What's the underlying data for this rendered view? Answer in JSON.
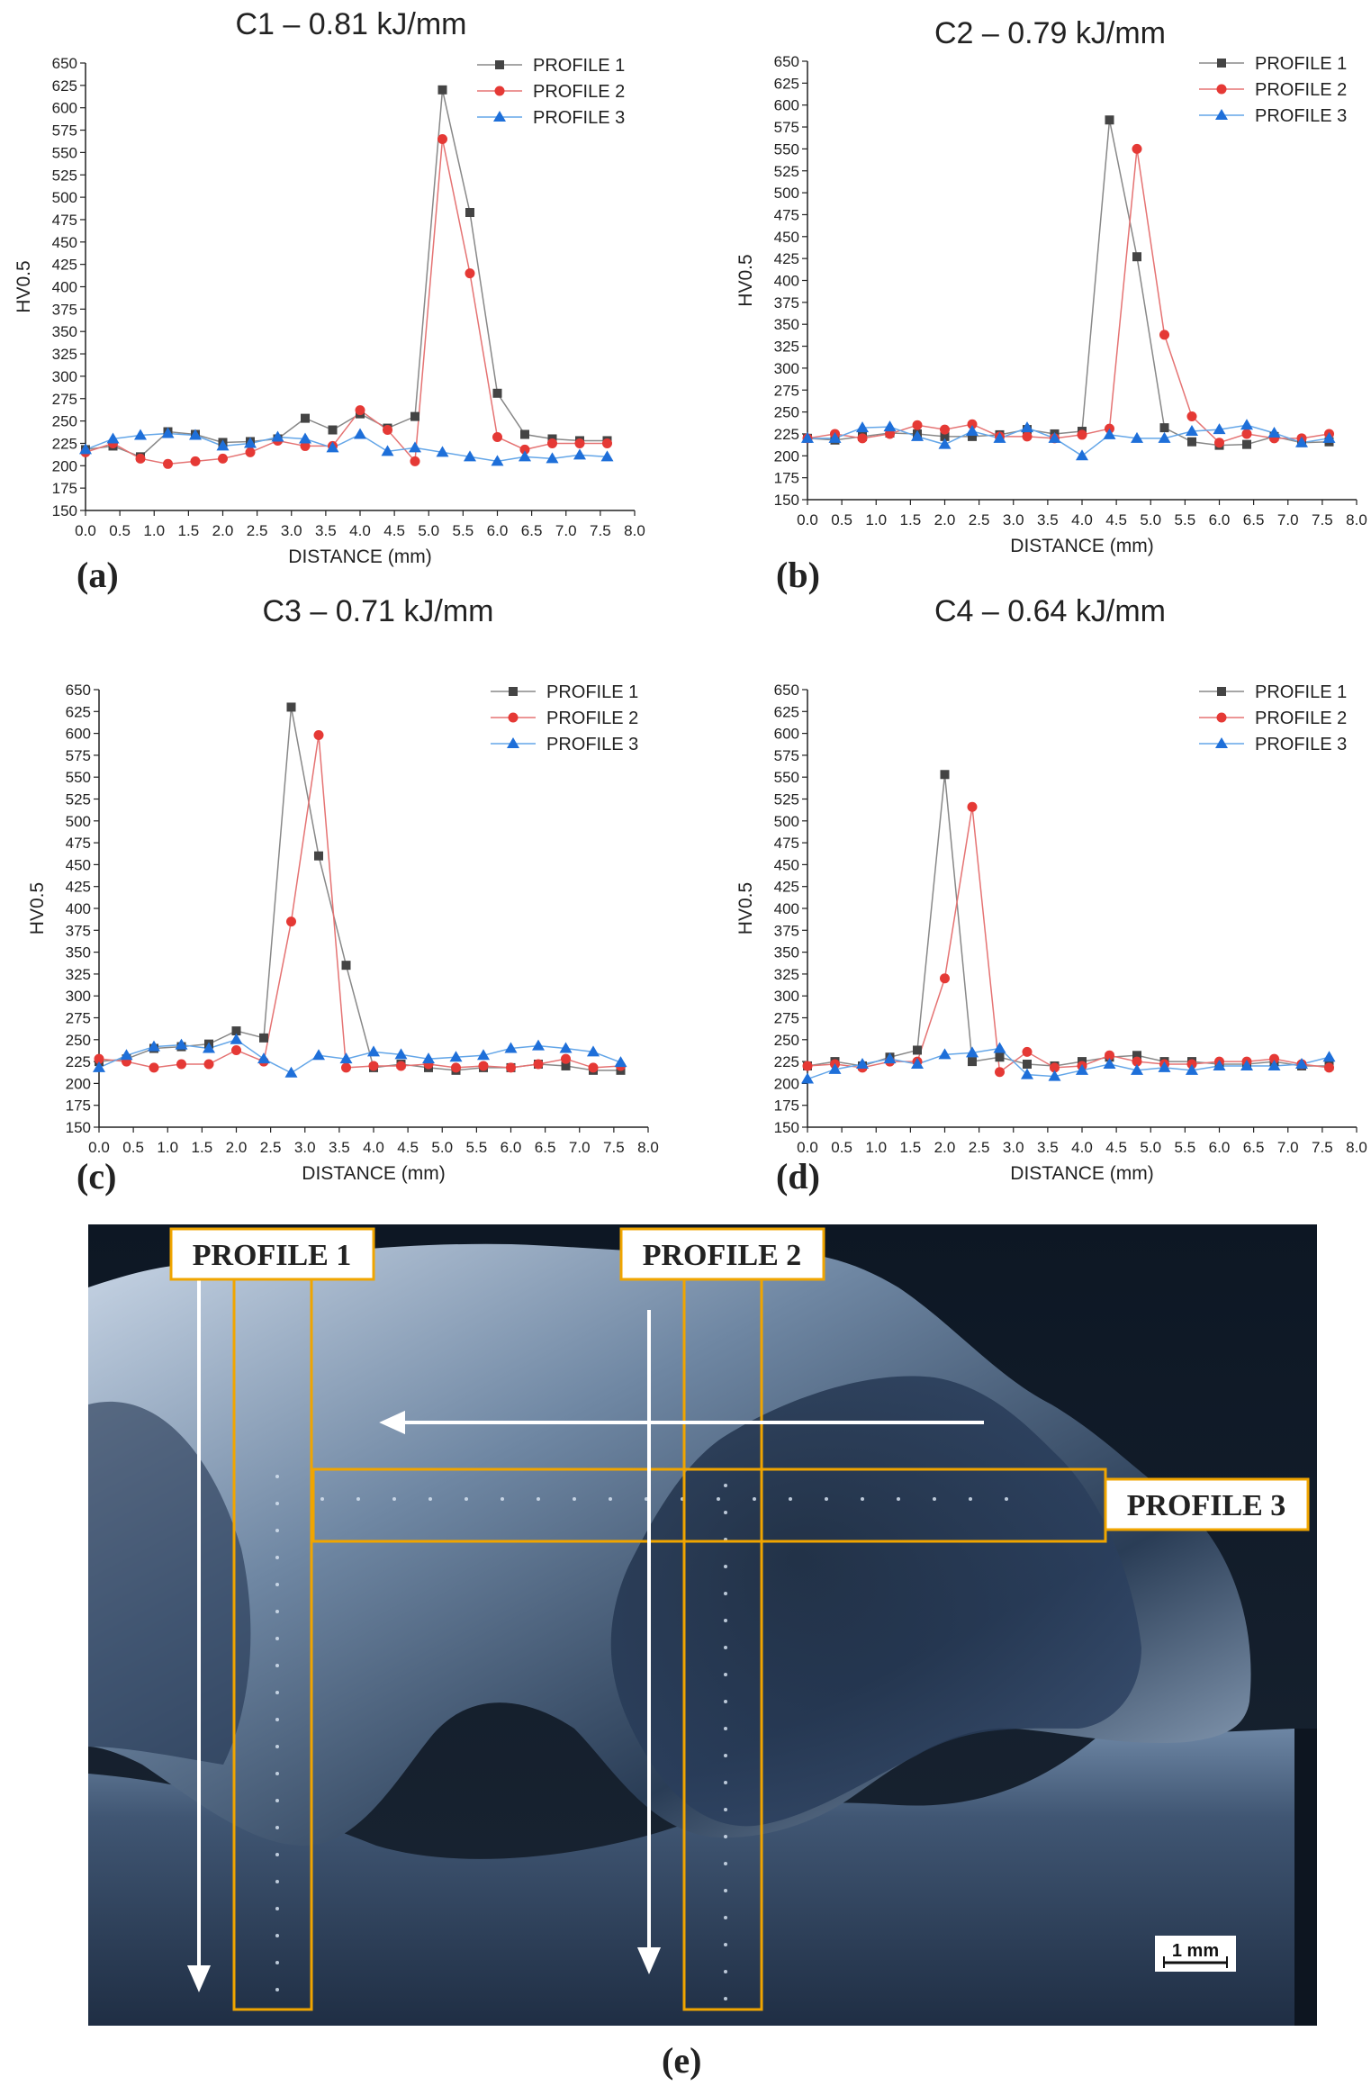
{
  "colors": {
    "series1": "#444444",
    "series2": "#e53935",
    "series3": "#1e6fd9",
    "line1": "#888888",
    "line2": "#e57373",
    "line3": "#64a6e8",
    "highlight": "#f0a500"
  },
  "chart_data": [
    {
      "id": "a",
      "panel_label": "(a)",
      "type": "line",
      "title": "C1 – 0.81 kJ/mm",
      "xlabel": "DISTANCE (mm)",
      "ylabel": "HV0.5",
      "xlim": [
        0,
        8
      ],
      "ylim": [
        150,
        650
      ],
      "xticks": [
        "0.0",
        "0.5",
        "1.0",
        "1.5",
        "2.0",
        "2.5",
        "3.0",
        "3.5",
        "4.0",
        "4.5",
        "5.0",
        "5.5",
        "6.0",
        "6.5",
        "7.0",
        "7.5",
        "8.0"
      ],
      "yticks": [
        "150",
        "175",
        "200",
        "225",
        "250",
        "275",
        "300",
        "325",
        "350",
        "375",
        "400",
        "425",
        "450",
        "475",
        "500",
        "525",
        "550",
        "575",
        "600",
        "625",
        "650"
      ],
      "legend_position": "top-right",
      "x": [
        0.0,
        0.4,
        0.8,
        1.2,
        1.6,
        2.0,
        2.4,
        2.8,
        3.2,
        3.6,
        4.0,
        4.4,
        4.8,
        5.2,
        5.6,
        6.0,
        6.4,
        6.8,
        7.2,
        7.6
      ],
      "series": [
        {
          "name": "PROFILE 1",
          "values": [
            218,
            222,
            210,
            238,
            235,
            226,
            227,
            230,
            253,
            240,
            258,
            242,
            255,
            620,
            483,
            281,
            235,
            230,
            228,
            228
          ]
        },
        {
          "name": "PROFILE 2",
          "values": [
            215,
            225,
            208,
            202,
            205,
            208,
            215,
            228,
            222,
            222,
            262,
            240,
            205,
            565,
            415,
            232,
            218,
            225,
            225,
            225
          ]
        },
        {
          "name": "PROFILE 3",
          "values": [
            218,
            230,
            234,
            236,
            234,
            222,
            225,
            232,
            230,
            220,
            235,
            216,
            220,
            215,
            210,
            205,
            210,
            208,
            212,
            210
          ]
        }
      ]
    },
    {
      "id": "b",
      "panel_label": "(b)",
      "type": "line",
      "title": "C2 – 0.79 kJ/mm",
      "xlabel": "DISTANCE (mm)",
      "ylabel": "HV0.5",
      "xlim": [
        0,
        8
      ],
      "ylim": [
        150,
        650
      ],
      "xticks": [
        "0.0",
        "0.5",
        "1.0",
        "1.5",
        "2.0",
        "2.5",
        "3.0",
        "3.5",
        "4.0",
        "4.5",
        "5.0",
        "5.5",
        "6.0",
        "6.5",
        "7.0",
        "7.5",
        "8.0"
      ],
      "yticks": [
        "150",
        "175",
        "200",
        "225",
        "250",
        "275",
        "300",
        "325",
        "350",
        "375",
        "400",
        "425",
        "450",
        "475",
        "500",
        "525",
        "550",
        "575",
        "600",
        "625",
        "650"
      ],
      "legend_position": "top-right",
      "x": [
        0.0,
        0.4,
        0.8,
        1.2,
        1.6,
        2.0,
        2.4,
        2.8,
        3.2,
        3.6,
        4.0,
        4.4,
        4.8,
        5.2,
        5.6,
        6.0,
        6.4,
        6.8,
        7.2,
        7.6
      ],
      "series": [
        {
          "name": "PROFILE 1",
          "values": [
            220,
            218,
            222,
            226,
            225,
            222,
            222,
            224,
            230,
            225,
            228,
            583,
            427,
            232,
            216,
            212,
            213,
            222,
            215,
            216
          ]
        },
        {
          "name": "PROFILE 2",
          "values": [
            220,
            225,
            220,
            225,
            235,
            230,
            236,
            222,
            222,
            220,
            224,
            231,
            550,
            338,
            245,
            215,
            225,
            220,
            220,
            225
          ]
        },
        {
          "name": "PROFILE 3",
          "values": [
            220,
            220,
            232,
            233,
            222,
            213,
            228,
            220,
            232,
            220,
            200,
            224,
            220,
            220,
            228,
            230,
            235,
            226,
            215,
            220
          ]
        }
      ]
    },
    {
      "id": "c",
      "panel_label": "(c)",
      "type": "line",
      "title": "C3 – 0.71 kJ/mm",
      "xlabel": "DISTANCE (mm)",
      "ylabel": "HV0.5",
      "xlim": [
        0,
        8
      ],
      "ylim": [
        150,
        650
      ],
      "xticks": [
        "0.0",
        "0.5",
        "1.0",
        "1.5",
        "2.0",
        "2.5",
        "3.0",
        "3.5",
        "4.0",
        "4.5",
        "5.0",
        "5.5",
        "6.0",
        "6.5",
        "7.0",
        "7.5",
        "8.0"
      ],
      "yticks": [
        "150",
        "175",
        "200",
        "225",
        "250",
        "275",
        "300",
        "325",
        "350",
        "375",
        "400",
        "425",
        "450",
        "475",
        "500",
        "525",
        "550",
        "575",
        "600",
        "625",
        "650"
      ],
      "legend_position": "top-right",
      "x": [
        0.0,
        0.4,
        0.8,
        1.2,
        1.6,
        2.0,
        2.4,
        2.8,
        3.2,
        3.6,
        4.0,
        4.4,
        4.8,
        5.2,
        5.6,
        6.0,
        6.4,
        6.8,
        7.2,
        7.6
      ],
      "series": [
        {
          "name": "PROFILE 1",
          "values": [
            225,
            228,
            240,
            242,
            245,
            260,
            252,
            630,
            460,
            335,
            218,
            222,
            218,
            215,
            218,
            218,
            222,
            220,
            215,
            215
          ]
        },
        {
          "name": "PROFILE 2",
          "values": [
            228,
            225,
            218,
            222,
            222,
            238,
            225,
            385,
            598,
            218,
            220,
            220,
            222,
            218,
            220,
            218,
            222,
            228,
            218,
            220
          ]
        },
        {
          "name": "PROFILE 3",
          "values": [
            218,
            232,
            242,
            244,
            240,
            250,
            228,
            212,
            232,
            228,
            236,
            233,
            228,
            230,
            232,
            240,
            243,
            240,
            236,
            224
          ]
        }
      ]
    },
    {
      "id": "d",
      "panel_label": "(d)",
      "type": "line",
      "title": "C4 – 0.64 kJ/mm",
      "xlabel": "DISTANCE (mm)",
      "ylabel": "HV0.5",
      "xlim": [
        0,
        8
      ],
      "ylim": [
        150,
        650
      ],
      "xticks": [
        "0.0",
        "0.5",
        "1.0",
        "1.5",
        "2.0",
        "2.5",
        "3.0",
        "3.5",
        "4.0",
        "4.5",
        "5.0",
        "5.5",
        "6.0",
        "6.5",
        "7.0",
        "7.5",
        "8.0"
      ],
      "yticks": [
        "150",
        "175",
        "200",
        "225",
        "250",
        "275",
        "300",
        "325",
        "350",
        "375",
        "400",
        "425",
        "450",
        "475",
        "500",
        "525",
        "550",
        "575",
        "600",
        "625",
        "650"
      ],
      "legend_position": "top-right",
      "x": [
        0.0,
        0.4,
        0.8,
        1.2,
        1.6,
        2.0,
        2.4,
        2.8,
        3.2,
        3.6,
        4.0,
        4.4,
        4.8,
        5.2,
        5.6,
        6.0,
        6.4,
        6.8,
        7.2,
        7.6
      ],
      "series": [
        {
          "name": "PROFILE 1",
          "values": [
            220,
            225,
            220,
            230,
            238,
            553,
            225,
            230,
            222,
            220,
            225,
            230,
            232,
            225,
            225,
            222,
            222,
            225,
            220,
            220
          ]
        },
        {
          "name": "PROFILE 2",
          "values": [
            220,
            222,
            218,
            225,
            225,
            320,
            516,
            213,
            236,
            218,
            220,
            232,
            225,
            222,
            222,
            225,
            225,
            228,
            222,
            218
          ]
        },
        {
          "name": "PROFILE 3",
          "values": [
            205,
            216,
            222,
            228,
            222,
            233,
            235,
            240,
            210,
            208,
            215,
            222,
            215,
            218,
            215,
            220,
            220,
            220,
            222,
            230
          ]
        }
      ]
    }
  ],
  "micrograph": {
    "panel_label": "(e)",
    "profile_labels": [
      "PROFILE 1",
      "PROFILE 2",
      "PROFILE 3"
    ],
    "scale_bar": "1 mm"
  }
}
